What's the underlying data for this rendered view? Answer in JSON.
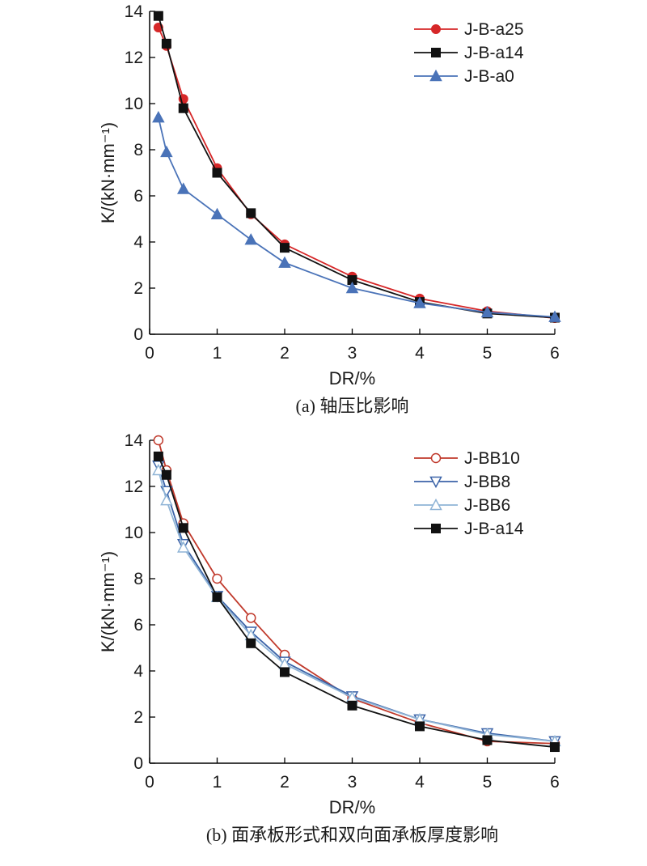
{
  "chart_data": [
    {
      "type": "line",
      "caption": "(a) 轴压比影响",
      "xlabel": "DR/%",
      "ylabel": "K/(kN·mm⁻¹)",
      "xlim": [
        0,
        6
      ],
      "ylim": [
        0,
        14
      ],
      "xticks": [
        0,
        1,
        2,
        3,
        4,
        5,
        6
      ],
      "yticks": [
        0,
        2,
        4,
        6,
        8,
        10,
        12,
        14
      ],
      "grid": false,
      "legend_position": "top-right",
      "series": [
        {
          "name": "J-B-a25",
          "color": "#d62728",
          "marker": "circle-filled",
          "x": [
            0.13,
            0.25,
            0.5,
            1,
            1.5,
            2,
            3,
            4,
            5,
            6
          ],
          "y": [
            13.3,
            12.5,
            10.2,
            7.2,
            5.2,
            3.9,
            2.5,
            1.55,
            1.0,
            0.7
          ]
        },
        {
          "name": "J-B-a14",
          "color": "#111111",
          "marker": "square-filled",
          "x": [
            0.13,
            0.25,
            0.5,
            1,
            1.5,
            2,
            3,
            4,
            5,
            6
          ],
          "y": [
            13.8,
            12.6,
            9.8,
            7.0,
            5.25,
            3.75,
            2.35,
            1.4,
            0.9,
            0.72
          ]
        },
        {
          "name": "J-B-a0",
          "color": "#4a73b8",
          "marker": "triangle-up-filled",
          "x": [
            0.13,
            0.25,
            0.5,
            1,
            1.5,
            2,
            3,
            4,
            5,
            6
          ],
          "y": [
            9.4,
            7.9,
            6.3,
            5.2,
            4.1,
            3.1,
            2.0,
            1.35,
            0.95,
            0.75
          ]
        }
      ]
    },
    {
      "type": "line",
      "caption": "(b) 面承板形式和双向面承板厚度影响",
      "xlabel": "DR/%",
      "ylabel": "K/(kN·mm⁻¹)",
      "xlim": [
        0,
        6
      ],
      "ylim": [
        0,
        14
      ],
      "xticks": [
        0,
        1,
        2,
        3,
        4,
        5,
        6
      ],
      "yticks": [
        0,
        2,
        4,
        6,
        8,
        10,
        12,
        14
      ],
      "grid": false,
      "legend_position": "top-right",
      "series": [
        {
          "name": "J-BB10",
          "color": "#c0392b",
          "marker": "circle-open",
          "x": [
            0.13,
            0.25,
            0.5,
            1,
            1.5,
            2,
            3,
            4,
            5,
            6
          ],
          "y": [
            14.0,
            12.7,
            10.4,
            8.0,
            6.3,
            4.7,
            2.8,
            1.75,
            0.95,
            0.85
          ]
        },
        {
          "name": "J-BB8",
          "color": "#3b63a8",
          "marker": "triangle-down-open",
          "x": [
            0.13,
            0.25,
            0.5,
            1,
            1.5,
            2,
            3,
            4,
            5,
            6
          ],
          "y": [
            12.9,
            11.8,
            9.5,
            7.25,
            5.7,
            4.4,
            2.9,
            1.9,
            1.3,
            0.95
          ]
        },
        {
          "name": "J-BB6",
          "color": "#8fb4d6",
          "marker": "triangle-up-open",
          "x": [
            0.13,
            0.25,
            0.5,
            1,
            1.5,
            2,
            3,
            4,
            5,
            6
          ],
          "y": [
            12.7,
            11.4,
            9.35,
            7.2,
            5.55,
            4.3,
            2.85,
            1.9,
            1.25,
            0.95
          ]
        },
        {
          "name": "J-B-a14",
          "color": "#111111",
          "marker": "square-filled",
          "x": [
            0.13,
            0.25,
            0.5,
            1,
            1.5,
            2,
            3,
            4,
            5,
            6
          ],
          "y": [
            13.3,
            12.5,
            10.2,
            7.2,
            5.2,
            3.95,
            2.5,
            1.6,
            1.0,
            0.7
          ]
        }
      ]
    }
  ]
}
